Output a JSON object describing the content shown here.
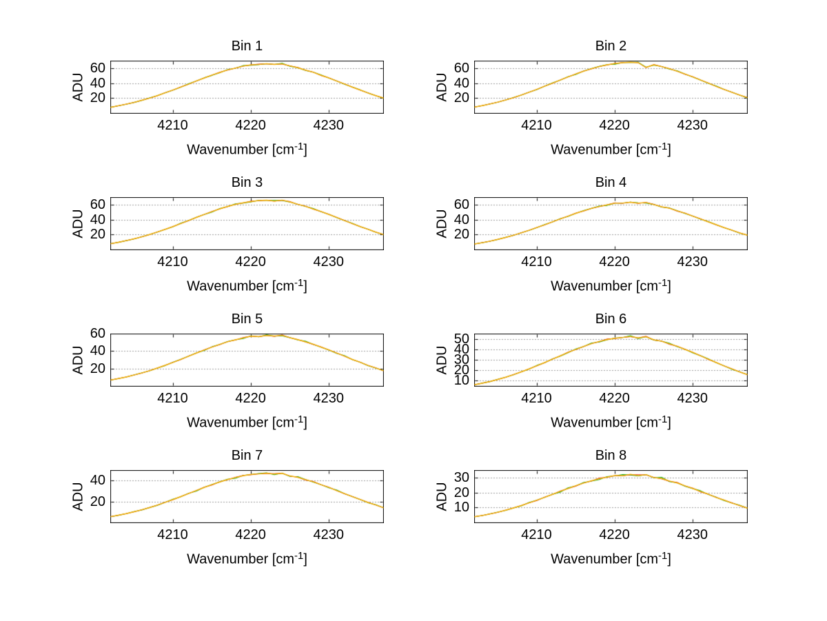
{
  "figure": {
    "background": "#ffffff",
    "rows": 4,
    "cols": 2
  },
  "xlabel_parts": {
    "pre": "Wavenumber [cm",
    "sup": "-1",
    "post": "]"
  },
  "styles": {
    "axis_color": "#000000",
    "grid_color": "#3a3a3a",
    "grid_style": "dotted",
    "text_color": "#000000",
    "traces": [
      {
        "name": "trace-green",
        "color": "#00a800"
      },
      {
        "name": "trace-red",
        "color": "#dd2200"
      },
      {
        "name": "trace-yellow",
        "color": "#f2ae00"
      }
    ]
  },
  "chart_data": [
    {
      "type": "line",
      "title": "Bin 1",
      "xlabel": "Wavenumber [cm⁻¹]",
      "ylabel": "ADU",
      "x_start": 4202,
      "x_step": 1,
      "xlim": [
        4202,
        4237
      ],
      "ylim": [
        0,
        70
      ],
      "xticks": [
        4210,
        4220,
        4230
      ],
      "yticks": [
        20,
        40,
        60
      ],
      "values": [
        8.1,
        10.2,
        12.3,
        14.6,
        17.5,
        20.4,
        23.7,
        27.5,
        31.2,
        35.2,
        39.1,
        43.4,
        47.2,
        51.2,
        54.6,
        58.1,
        60.5,
        63.2,
        64.9,
        65.3,
        66.4,
        65.4,
        66.2,
        63.5,
        61.0,
        57.8,
        54.9,
        50.9,
        47.4,
        43.2,
        39.3,
        35.0,
        31.3,
        27.3,
        23.7,
        20.5
      ]
    },
    {
      "type": "line",
      "title": "Bin 2",
      "xlabel": "Wavenumber [cm⁻¹]",
      "ylabel": "ADU",
      "x_start": 4202,
      "x_step": 1,
      "xlim": [
        4202,
        4237
      ],
      "ylim": [
        0,
        70
      ],
      "xticks": [
        4210,
        4220,
        4230
      ],
      "yticks": [
        20,
        40,
        60
      ],
      "values": [
        8.4,
        10.4,
        12.6,
        15.1,
        17.9,
        21.0,
        24.5,
        28.2,
        32.1,
        36.2,
        40.4,
        44.6,
        48.7,
        52.7,
        56.3,
        59.8,
        62.5,
        64.9,
        66.5,
        67.7,
        68.4,
        67.7,
        61.5,
        64.9,
        62.5,
        59.7,
        56.3,
        52.6,
        48.7,
        44.6,
        40.4,
        36.1,
        32.1,
        28.2,
        24.5,
        21.0
      ]
    },
    {
      "type": "line",
      "title": "Bin 3",
      "xlabel": "Wavenumber [cm⁻¹]",
      "ylabel": "ADU",
      "x_start": 4202,
      "x_step": 1,
      "xlim": [
        4202,
        4237
      ],
      "ylim": [
        0,
        70
      ],
      "xticks": [
        4210,
        4220,
        4230
      ],
      "yticks": [
        20,
        40,
        60
      ],
      "values": [
        8.2,
        10.1,
        12.3,
        14.7,
        17.4,
        20.5,
        23.8,
        27.4,
        31.1,
        35.2,
        39.2,
        43.3,
        47.4,
        51.0,
        54.8,
        58.0,
        60.8,
        62.9,
        64.5,
        65.8,
        66.3,
        65.2,
        66.4,
        64.0,
        60.9,
        58.2,
        54.6,
        51.2,
        47.2,
        43.4,
        39.1,
        35.2,
        31.1,
        27.5,
        23.7,
        20.4
      ]
    },
    {
      "type": "line",
      "title": "Bin 4",
      "xlabel": "Wavenumber [cm⁻¹]",
      "ylabel": "ADU",
      "x_start": 4202,
      "x_step": 1,
      "xlim": [
        4202,
        4237
      ],
      "ylim": [
        0,
        70
      ],
      "xticks": [
        4210,
        4220,
        4230
      ],
      "yticks": [
        20,
        40,
        60
      ],
      "values": [
        7.8,
        9.6,
        11.6,
        14.0,
        16.6,
        19.5,
        22.7,
        26.2,
        29.8,
        33.5,
        37.4,
        41.3,
        45.1,
        48.8,
        52.2,
        55.4,
        57.9,
        60.1,
        62.3,
        62.5,
        63.6,
        62.4,
        63.2,
        60.5,
        57.6,
        55.6,
        52.1,
        48.9,
        45.0,
        41.4,
        37.3,
        33.6,
        29.7,
        26.3,
        22.6,
        19.6
      ]
    },
    {
      "type": "line",
      "title": "Bin 5",
      "xlabel": "Wavenumber [cm⁻¹]",
      "ylabel": "ADU",
      "x_start": 4202,
      "x_step": 1,
      "xlim": [
        4202,
        4237
      ],
      "ylim": [
        0,
        60
      ],
      "xticks": [
        4210,
        4220,
        4230
      ],
      "yticks": [
        20,
        40,
        60
      ],
      "values": [
        7.2,
        8.9,
        10.7,
        12.9,
        15.3,
        17.9,
        20.9,
        24.1,
        27.4,
        30.9,
        34.5,
        38.1,
        41.6,
        44.9,
        48.1,
        51.0,
        53.3,
        55.4,
        57.4,
        57.0,
        58.2,
        57.6,
        58.3,
        55.7,
        53.5,
        50.9,
        48.2,
        44.8,
        41.7,
        38.0,
        34.6,
        30.8,
        27.5,
        24.0,
        21.0,
        17.8
      ]
    },
    {
      "type": "line",
      "title": "Bin 6",
      "xlabel": "Wavenumber [cm⁻¹]",
      "ylabel": "ADU",
      "x_start": 4202,
      "x_step": 1,
      "xlim": [
        4202,
        4237
      ],
      "ylim": [
        5,
        55
      ],
      "xticks": [
        4210,
        4220,
        4230
      ],
      "yticks": [
        10,
        20,
        30,
        40,
        50
      ],
      "values": [
        6.5,
        8.0,
        9.6,
        11.6,
        13.7,
        16.1,
        18.8,
        21.6,
        24.6,
        27.7,
        30.9,
        34.1,
        37.3,
        40.3,
        43.1,
        45.7,
        47.8,
        49.6,
        50.9,
        51.6,
        52.6,
        51.2,
        52.3,
        49.4,
        48.0,
        45.5,
        43.2,
        40.2,
        37.4,
        34.0,
        30.9,
        27.7,
        24.5,
        21.7,
        18.7,
        16.2
      ]
    },
    {
      "type": "line",
      "title": "Bin 7",
      "xlabel": "Wavenumber [cm⁻¹]",
      "ylabel": "ADU",
      "x_start": 4202,
      "x_step": 1,
      "xlim": [
        4202,
        4237
      ],
      "ylim": [
        0,
        50
      ],
      "xticks": [
        4210,
        4220,
        4230
      ],
      "yticks": [
        20,
        40
      ],
      "values": [
        5.8,
        7.2,
        8.7,
        10.5,
        12.4,
        14.5,
        16.9,
        19.5,
        22.2,
        25.0,
        27.9,
        30.8,
        33.7,
        36.4,
        39.0,
        41.3,
        43.2,
        44.9,
        46.2,
        46.6,
        47.4,
        46.5,
        47.2,
        44.7,
        43.4,
        41.2,
        39.1,
        36.3,
        33.8,
        30.7,
        27.9,
        24.9,
        22.3,
        19.4,
        17.0,
        14.4
      ]
    },
    {
      "type": "line",
      "title": "Bin 8",
      "xlabel": "Wavenumber [cm⁻¹]",
      "ylabel": "ADU",
      "x_start": 4202,
      "x_step": 1,
      "xlim": [
        4202,
        4237
      ],
      "ylim": [
        0,
        35
      ],
      "xticks": [
        4210,
        4220,
        4230
      ],
      "yticks": [
        10,
        20,
        30
      ],
      "values": [
        4.0,
        4.9,
        5.9,
        7.1,
        8.4,
        9.9,
        11.5,
        13.3,
        15.1,
        17.0,
        19.0,
        21.0,
        22.9,
        24.8,
        26.5,
        28.1,
        29.4,
        30.5,
        31.6,
        31.4,
        32.4,
        31.5,
        32.2,
        30.2,
        29.6,
        27.9,
        26.6,
        24.7,
        22.9,
        20.9,
        19.1,
        16.9,
        15.2,
        13.2,
        11.6,
        9.8
      ]
    }
  ]
}
